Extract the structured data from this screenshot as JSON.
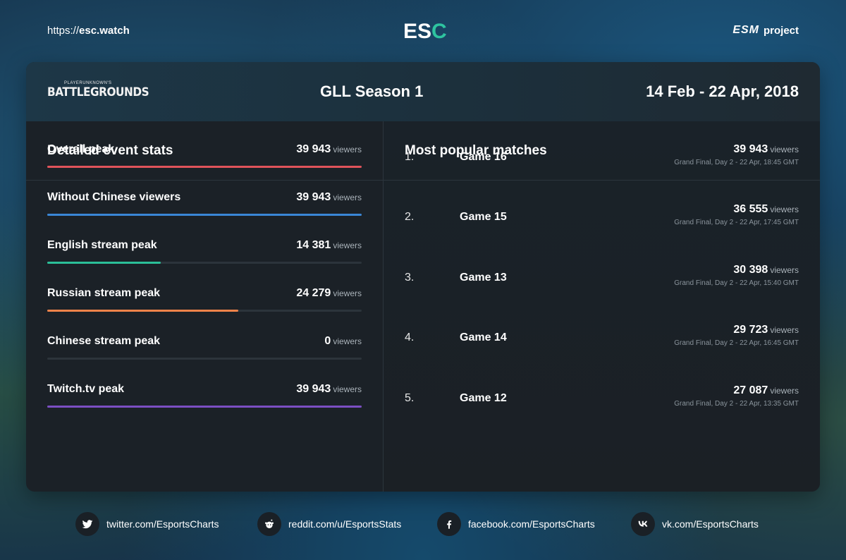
{
  "top": {
    "url_prefix": "https://",
    "url_domain": "esc.watch",
    "logo_text_main": "ES",
    "logo_text_accent": "C",
    "esm_mark": "ESM",
    "esm_label": "project"
  },
  "header": {
    "game_logo_small": "PLAYERUNKNOWN'S",
    "game_logo_big": "BATTLEGROUNDS",
    "event_name": "GLL Season 1",
    "event_dates": "14 Feb - 22 Apr, 2018"
  },
  "left": {
    "title": "Detailed event stats",
    "unit": "viewers",
    "stats": [
      {
        "label": "Overall peak",
        "value": "39 943",
        "fraction": 1.0,
        "color": "#e0535a"
      },
      {
        "label": "Without Chinese viewers",
        "value": "39 943",
        "fraction": 1.0,
        "color": "#3a86d6"
      },
      {
        "label": "English stream peak",
        "value": "14 381",
        "fraction": 0.36,
        "color": "#2bbf98"
      },
      {
        "label": "Russian stream peak",
        "value": "24 279",
        "fraction": 0.608,
        "color": "#f0834a"
      },
      {
        "label": "Chinese stream peak",
        "value": "0",
        "fraction": 0.0,
        "color": "#e0535a"
      },
      {
        "label": "Twitch.tv peak",
        "value": "39 943",
        "fraction": 1.0,
        "color": "#7b4fc2"
      }
    ]
  },
  "right": {
    "title": "Most popular matches",
    "unit": "viewers",
    "matches": [
      {
        "rank": "1.",
        "name": "Game 16",
        "value": "39 943",
        "info": "Grand Final, Day 2 - 22 Apr, 18:45 GMT"
      },
      {
        "rank": "2.",
        "name": "Game 15",
        "value": "36 555",
        "info": "Grand Final, Day 2 - 22 Apr, 17:45 GMT"
      },
      {
        "rank": "3.",
        "name": "Game 13",
        "value": "30 398",
        "info": "Grand Final, Day 2 - 22 Apr, 15:40 GMT"
      },
      {
        "rank": "4.",
        "name": "Game 14",
        "value": "29 723",
        "info": "Grand Final, Day 2 - 22 Apr, 16:45 GMT"
      },
      {
        "rank": "5.",
        "name": "Game 12",
        "value": "27 087",
        "info": "Grand Final, Day 2 - 22 Apr, 13:35 GMT"
      }
    ]
  },
  "footer": {
    "links": [
      {
        "icon": "twitter-icon",
        "text": "twitter.com/EsportsCharts"
      },
      {
        "icon": "reddit-icon",
        "text": "reddit.com/u/EsportsStats"
      },
      {
        "icon": "facebook-icon",
        "text": "facebook.com/EsportsCharts"
      },
      {
        "icon": "vk-icon",
        "text": "vk.com/EsportsCharts"
      }
    ]
  }
}
